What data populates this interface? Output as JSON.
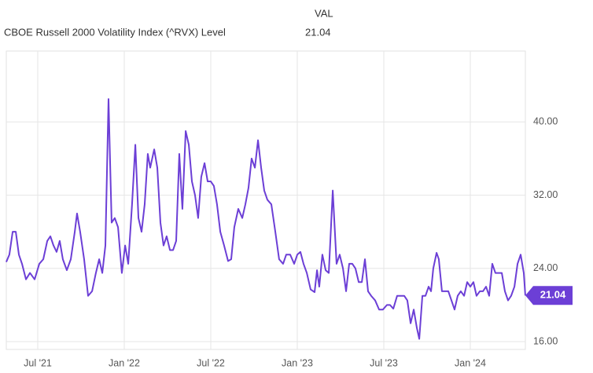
{
  "chart_data": {
    "type": "line",
    "column_header": "VAL",
    "xlim": [
      2021.3,
      2024.33
    ],
    "xticks": [
      {
        "value": 2021.5,
        "label": "Jul '21"
      },
      {
        "value": 2022,
        "label": "Jan '22"
      },
      {
        "value": 2022.5,
        "label": "Jul '22"
      },
      {
        "value": 2023,
        "label": "Jan '23"
      },
      {
        "value": 2023.5,
        "label": "Jul '23"
      },
      {
        "value": 2024,
        "label": "Jan '24"
      }
    ],
    "ylim": [
      15.1,
      47.7
    ],
    "yticks": [
      {
        "value": 16,
        "label": "16.00"
      },
      {
        "value": 24,
        "label": "24.00"
      },
      {
        "value": 32,
        "label": "32.00"
      },
      {
        "value": 40,
        "label": "40.00"
      }
    ],
    "grid": true,
    "x": [
      2021.318,
      2021.336,
      2021.355,
      2021.373,
      2021.391,
      2021.409,
      2021.432,
      2021.455,
      2021.482,
      2021.509,
      2021.532,
      2021.555,
      2021.573,
      2021.591,
      2021.609,
      2021.627,
      2021.645,
      2021.668,
      2021.691,
      2021.714,
      2021.727,
      2021.745,
      2021.768,
      2021.791,
      2021.814,
      2021.836,
      2021.855,
      2021.873,
      2021.891,
      2021.909,
      2021.927,
      2021.945,
      2021.964,
      2021.986,
      2022.005,
      2022.023,
      2022.045,
      2022.064,
      2022.082,
      2022.1,
      2022.118,
      2022.136,
      2022.15,
      2022.173,
      2022.191,
      2022.209,
      2022.227,
      2022.245,
      2022.264,
      2022.282,
      2022.3,
      2022.318,
      2022.336,
      2022.355,
      2022.373,
      2022.391,
      2022.409,
      2022.427,
      2022.445,
      2022.464,
      2022.482,
      2022.5,
      2022.518,
      2022.536,
      2022.555,
      2022.577,
      2022.6,
      2022.618,
      2022.636,
      2022.659,
      2022.682,
      2022.7,
      2022.718,
      2022.736,
      2022.755,
      2022.773,
      2022.791,
      2022.809,
      2022.827,
      2022.85,
      2022.873,
      2022.895,
      2022.918,
      2022.936,
      2022.959,
      2022.982,
      2023.0,
      2023.018,
      2023.036,
      2023.055,
      2023.077,
      2023.1,
      2023.114,
      2023.127,
      2023.145,
      2023.164,
      2023.182,
      2023.205,
      2023.227,
      2023.245,
      2023.264,
      2023.282,
      2023.3,
      2023.318,
      2023.336,
      2023.355,
      2023.373,
      2023.391,
      2023.409,
      2023.427,
      2023.45,
      2023.473,
      2023.495,
      2023.518,
      2023.536,
      2023.555,
      2023.577,
      2023.6,
      2023.618,
      2023.636,
      2023.655,
      2023.673,
      2023.691,
      2023.705,
      2023.723,
      2023.741,
      2023.759,
      2023.773,
      2023.786,
      2023.805,
      2023.818,
      2023.836,
      2023.855,
      2023.873,
      2023.891,
      2023.909,
      2023.927,
      2023.945,
      2023.964,
      2023.982,
      2024.0,
      2024.018,
      2024.036,
      2024.055,
      2024.073,
      2024.091,
      2024.109,
      2024.127,
      2024.145,
      2024.164,
      2024.182,
      2024.2,
      2024.218,
      2024.236,
      2024.255,
      2024.273,
      2024.291,
      2024.309,
      2024.318
    ],
    "series": [
      {
        "name": "CBOE Russell 2000 Volatility Index (^RVX) Level",
        "color": "#6c3fd6",
        "values": [
          24.7,
          25.5,
          28,
          28,
          25.5,
          24.5,
          22.8,
          23.5,
          22.8,
          24.5,
          25,
          27,
          27.5,
          26.5,
          25.8,
          27,
          25,
          23.8,
          25,
          28,
          30,
          28,
          25,
          21,
          21.5,
          23.5,
          25,
          23.5,
          26.5,
          42.5,
          29,
          29.5,
          28.5,
          23.5,
          26.5,
          24.5,
          31,
          37.5,
          29.5,
          28,
          31,
          36.5,
          35,
          37,
          35,
          29,
          26.5,
          27.5,
          26,
          26,
          27,
          36.5,
          30.5,
          39,
          37.5,
          33.5,
          32,
          29.5,
          34,
          35.5,
          33.5,
          33.5,
          33,
          31,
          28,
          26.5,
          24.8,
          25,
          28.5,
          30.5,
          29.5,
          31,
          32.8,
          36,
          35,
          38,
          35,
          32.5,
          31.5,
          31,
          28,
          25,
          24.5,
          25.5,
          25.5,
          24.5,
          25.5,
          25.8,
          24.5,
          23.5,
          21.7,
          21.4,
          23.8,
          22,
          25.5,
          23.8,
          23.5,
          32.5,
          24.5,
          25.5,
          24,
          21.5,
          24.5,
          24.5,
          24,
          22.5,
          22.5,
          25,
          21.5,
          21,
          20.5,
          19.5,
          19.5,
          20,
          20,
          19.6,
          21,
          21,
          21,
          20.5,
          18,
          19.5,
          17.5,
          16.3,
          21,
          21,
          22,
          21.5,
          24,
          25.7,
          25,
          21.5,
          21.5,
          21.5,
          20.5,
          19.5,
          21,
          21.5,
          21,
          22.5,
          22,
          22.5,
          21,
          21.5,
          21.5,
          22,
          21,
          24.5,
          23.5,
          23.5,
          23.5,
          21.5,
          20.5,
          21,
          22,
          24.5,
          25.5,
          23.5,
          21.04
        ]
      }
    ]
  }
}
